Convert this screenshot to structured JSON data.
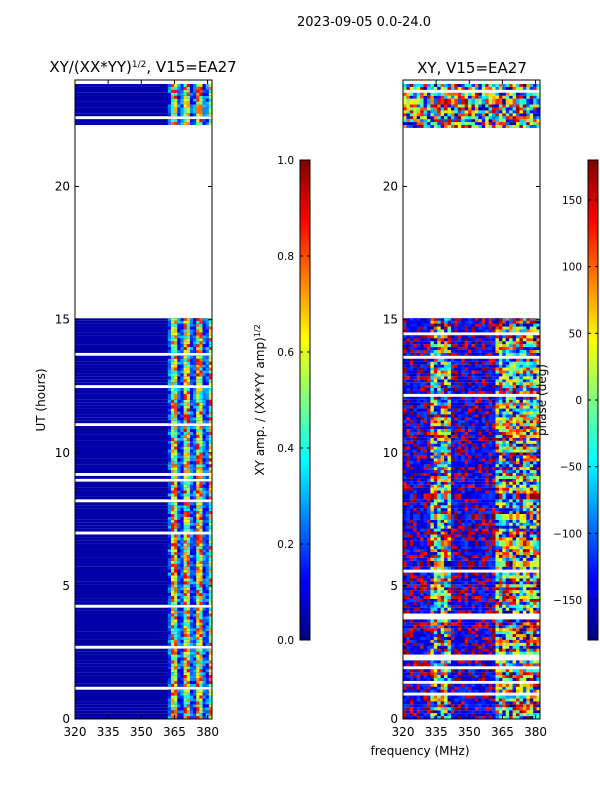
{
  "figure_title": "2023-09-05 0.0-24.0",
  "colors": {
    "jet_stops": [
      "#00007f",
      "#0000ff",
      "#007fff",
      "#00ffff",
      "#7fff7f",
      "#ffff00",
      "#ff7f00",
      "#ff0000",
      "#7f0000"
    ],
    "axes_edge": "#000000",
    "background": "#ffffff"
  },
  "chart_data": [
    {
      "type": "heatmap",
      "title_main": "XY/(XX*YY)",
      "title_sup": "1/2",
      "title_rest": ", V15=EA27",
      "xlabel": "",
      "ylabel": "UT (hours)",
      "xlim": [
        320,
        382
      ],
      "ylim": [
        0,
        24
      ],
      "x_ticks": [
        320,
        335,
        350,
        365,
        380
      ],
      "y_ticks": [
        0,
        5,
        10,
        15,
        20
      ],
      "x_tick_labels": [
        "320",
        "335",
        "350",
        "365",
        "380"
      ],
      "y_tick_labels": [
        "0",
        "5",
        "10",
        "15",
        "20"
      ],
      "data_time_ranges_hours": [
        [
          0,
          15.05
        ],
        [
          22.2,
          23.9
        ]
      ],
      "bright_freq_band_mhz": [
        362,
        382
      ],
      "colorbar": {
        "label_main": "XY amp. / (XX*YY amp)",
        "label_sup": "1/2",
        "range": [
          0,
          1
        ],
        "ticks": [
          0,
          0.2,
          0.4,
          0.6,
          0.8,
          1
        ],
        "tick_labels": [
          "0.0",
          "0.2",
          "0.4",
          "0.6",
          "0.8",
          "1.0"
        ]
      }
    },
    {
      "type": "heatmap",
      "title": "XY, V15=EA27",
      "xlabel": "frequency (MHz)",
      "ylabel": "",
      "xlim": [
        320,
        382
      ],
      "ylim": [
        0,
        24
      ],
      "x_ticks": [
        320,
        335,
        350,
        365,
        380
      ],
      "y_ticks": [
        0,
        5,
        10,
        15,
        20
      ],
      "x_tick_labels": [
        "320",
        "335",
        "350",
        "365",
        "380"
      ],
      "y_tick_labels": [
        "0",
        "5",
        "10",
        "15",
        "20"
      ],
      "data_time_ranges_hours": [
        [
          0,
          15.05
        ],
        [
          22.2,
          23.9
        ]
      ],
      "bright_freq_bands_mhz": [
        [
          332,
          342
        ],
        [
          362,
          382
        ]
      ],
      "colorbar": {
        "label": "phase (deg)",
        "range": [
          -180,
          180
        ],
        "ticks": [
          -150,
          -100,
          -50,
          0,
          50,
          100,
          150
        ],
        "tick_labels": [
          "−150",
          "−100",
          "−50",
          "0",
          "50",
          "100",
          "150"
        ]
      }
    }
  ]
}
